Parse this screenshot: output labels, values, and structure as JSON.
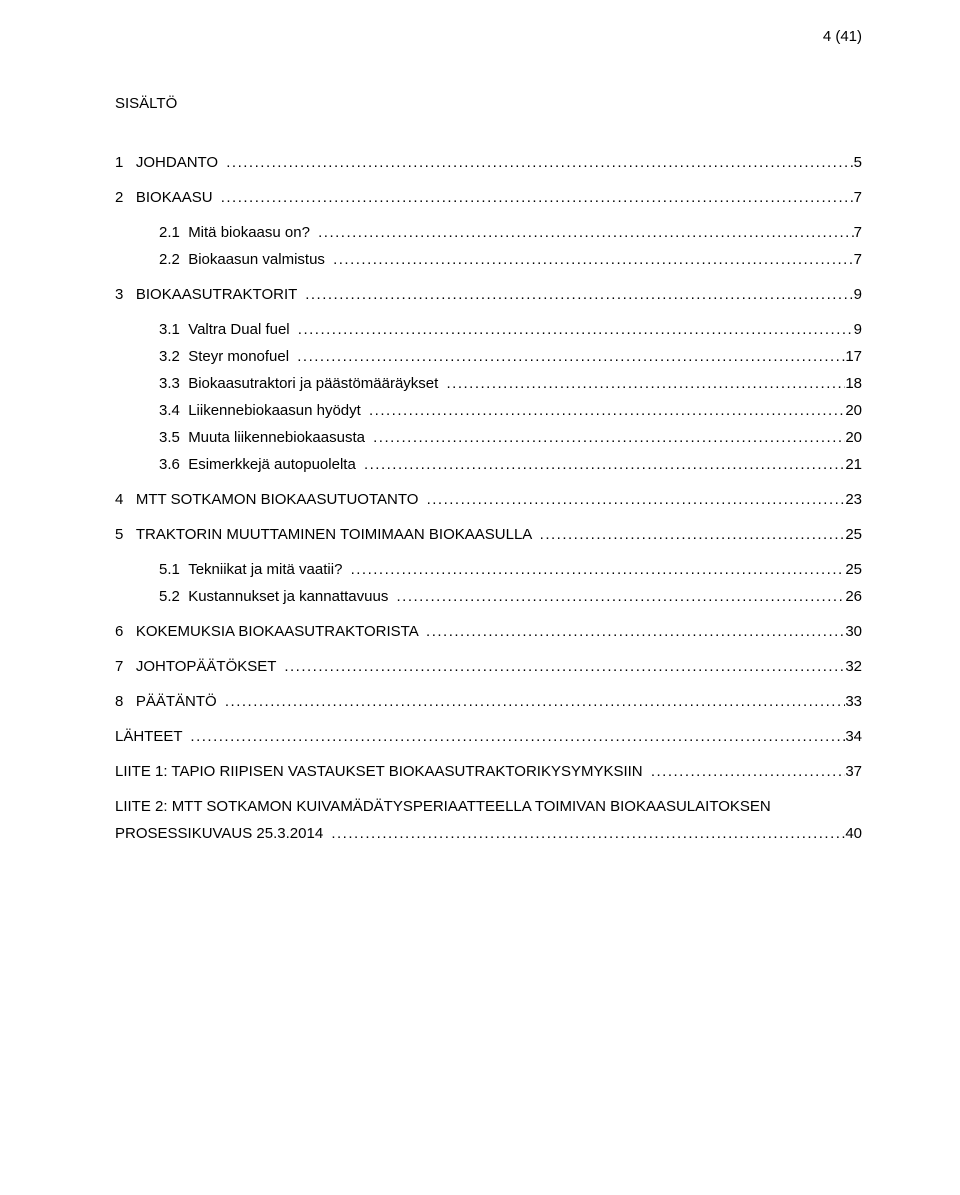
{
  "page": {
    "number_label": "4 (41)",
    "title": "SISÄLTÖ",
    "leader_char": "."
  },
  "toc": [
    {
      "num": "1",
      "label": "JOHDANTO",
      "page": "5",
      "indent": 0,
      "gap": true
    },
    {
      "num": "2",
      "label": "BIOKAASU",
      "page": "7",
      "indent": 0,
      "gap": true
    },
    {
      "num": "2.1",
      "label": "Mitä biokaasu on?",
      "page": "7",
      "indent": 1,
      "gap": true
    },
    {
      "num": "2.2",
      "label": "Biokaasun valmistus",
      "page": "7",
      "indent": 1,
      "gap": false
    },
    {
      "num": "3",
      "label": "BIOKAASUTRAKTORIT",
      "page": "9",
      "indent": 0,
      "gap": true
    },
    {
      "num": "3.1",
      "label": "Valtra Dual fuel",
      "page": "9",
      "indent": 1,
      "gap": true
    },
    {
      "num": "3.2",
      "label": "Steyr monofuel",
      "page": "17",
      "indent": 1,
      "gap": false
    },
    {
      "num": "3.3",
      "label": "Biokaasutraktori ja päästömääräykset",
      "page": "18",
      "indent": 1,
      "gap": false
    },
    {
      "num": "3.4",
      "label": "Liikennebiokaasun hyödyt",
      "page": "20",
      "indent": 1,
      "gap": false
    },
    {
      "num": "3.5",
      "label": "Muuta liikennebiokaasusta",
      "page": "20",
      "indent": 1,
      "gap": false
    },
    {
      "num": "3.6",
      "label": "Esimerkkejä autopuolelta",
      "page": "21",
      "indent": 1,
      "gap": false
    },
    {
      "num": "4",
      "label": "MTT SOTKAMON BIOKAASUTUOTANTO",
      "page": "23",
      "indent": 0,
      "gap": true
    },
    {
      "num": "5",
      "label": "TRAKTORIN MUUTTAMINEN TOIMIMAAN BIOKAASULLA",
      "page": "25",
      "indent": 0,
      "gap": true
    },
    {
      "num": "5.1",
      "label": "Tekniikat ja mitä vaatii?",
      "page": "25",
      "indent": 1,
      "gap": true
    },
    {
      "num": "5.2",
      "label": "Kustannukset ja kannattavuus",
      "page": "26",
      "indent": 1,
      "gap": false
    },
    {
      "num": "6",
      "label": "KOKEMUKSIA BIOKAASUTRAKTORISTA",
      "page": "30",
      "indent": 0,
      "gap": true
    },
    {
      "num": "7",
      "label": "JOHTOPÄÄTÖKSET",
      "page": "32",
      "indent": 0,
      "gap": true
    },
    {
      "num": "8",
      "label": "PÄÄTÄNTÖ",
      "page": "33",
      "indent": 0,
      "gap": true
    },
    {
      "num": "",
      "label": "LÄHTEET",
      "page": "34",
      "indent": 0,
      "gap": true
    },
    {
      "num": "",
      "label": "LIITE 1: TAPIO RIIPISEN VASTAUKSET BIOKAASUTRAKTORIKYSYMYKSIIN",
      "page": "37",
      "indent": 0,
      "gap": true
    },
    {
      "num": "",
      "label": "LIITE 2: MTT SOTKAMON KUIVAMÄDÄTYSPERIAATTEELLA TOIMIVAN BIOKAASULAITOKSEN PROSESSIKUVAUS 25.3.2014",
      "page": "40",
      "indent": 0,
      "gap": true,
      "multiline": true
    }
  ],
  "style": {
    "font_size_pt": 11,
    "text_color": "#000000",
    "background_color": "#ffffff"
  }
}
